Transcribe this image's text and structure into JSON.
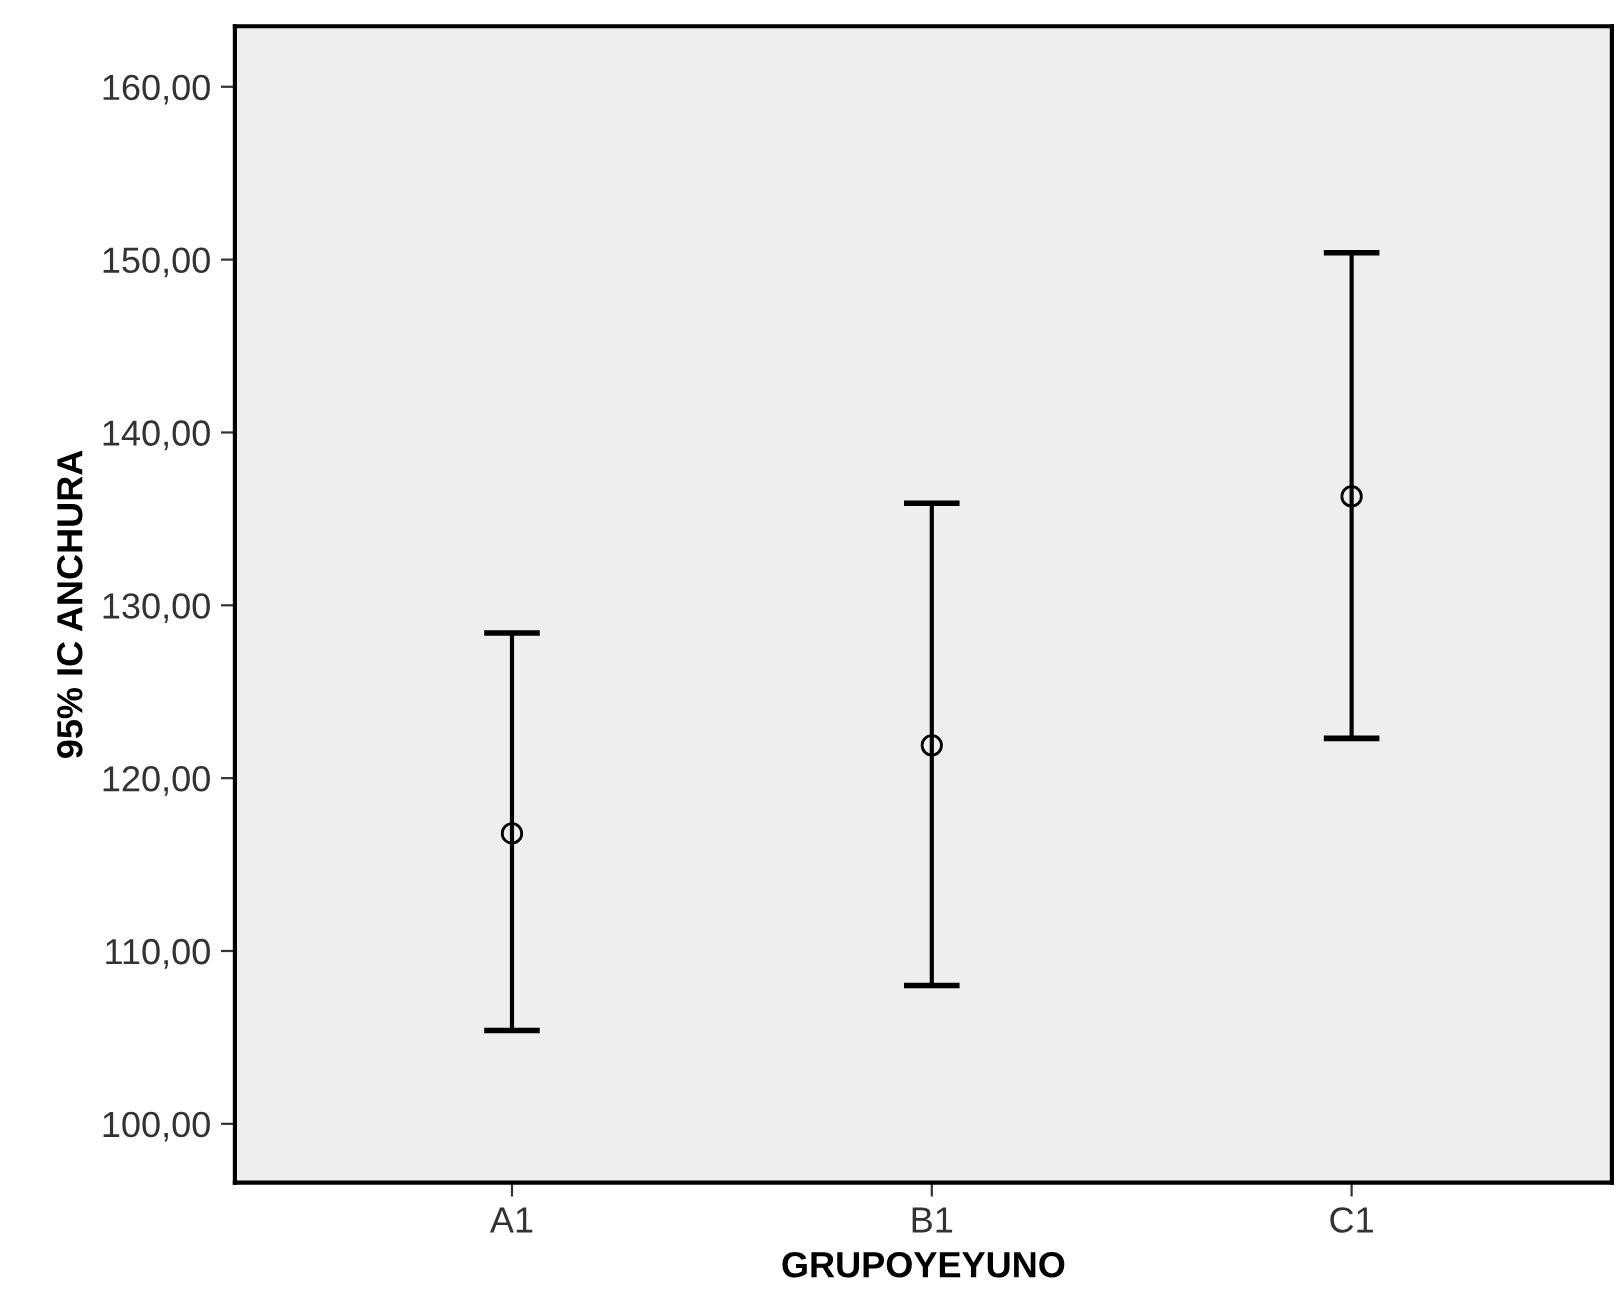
{
  "chart_data": {
    "type": "scatter",
    "xlabel": "GRUPOYEYUNO",
    "ylabel": "95% IC ANCHURA",
    "categories": [
      "A1",
      "B1",
      "C1"
    ],
    "values": [
      116.8,
      121.9,
      136.3
    ],
    "errors": [
      [
        105.4,
        128.4
      ],
      [
        108.0,
        135.9
      ],
      [
        122.3,
        150.4
      ]
    ],
    "color": "#000000",
    "marker": "circle",
    "grid": false,
    "ylim": [
      96.6,
      163.5
    ],
    "yticks": [
      {
        "value": 100,
        "label": "100,00"
      },
      {
        "value": 110,
        "label": "110,00"
      },
      {
        "value": 120,
        "label": "120,00"
      },
      {
        "value": 130,
        "label": "130,00"
      },
      {
        "value": 140,
        "label": "140,00"
      },
      {
        "value": 150,
        "label": "150,00"
      },
      {
        "value": 160,
        "label": "160,00"
      }
    ]
  }
}
